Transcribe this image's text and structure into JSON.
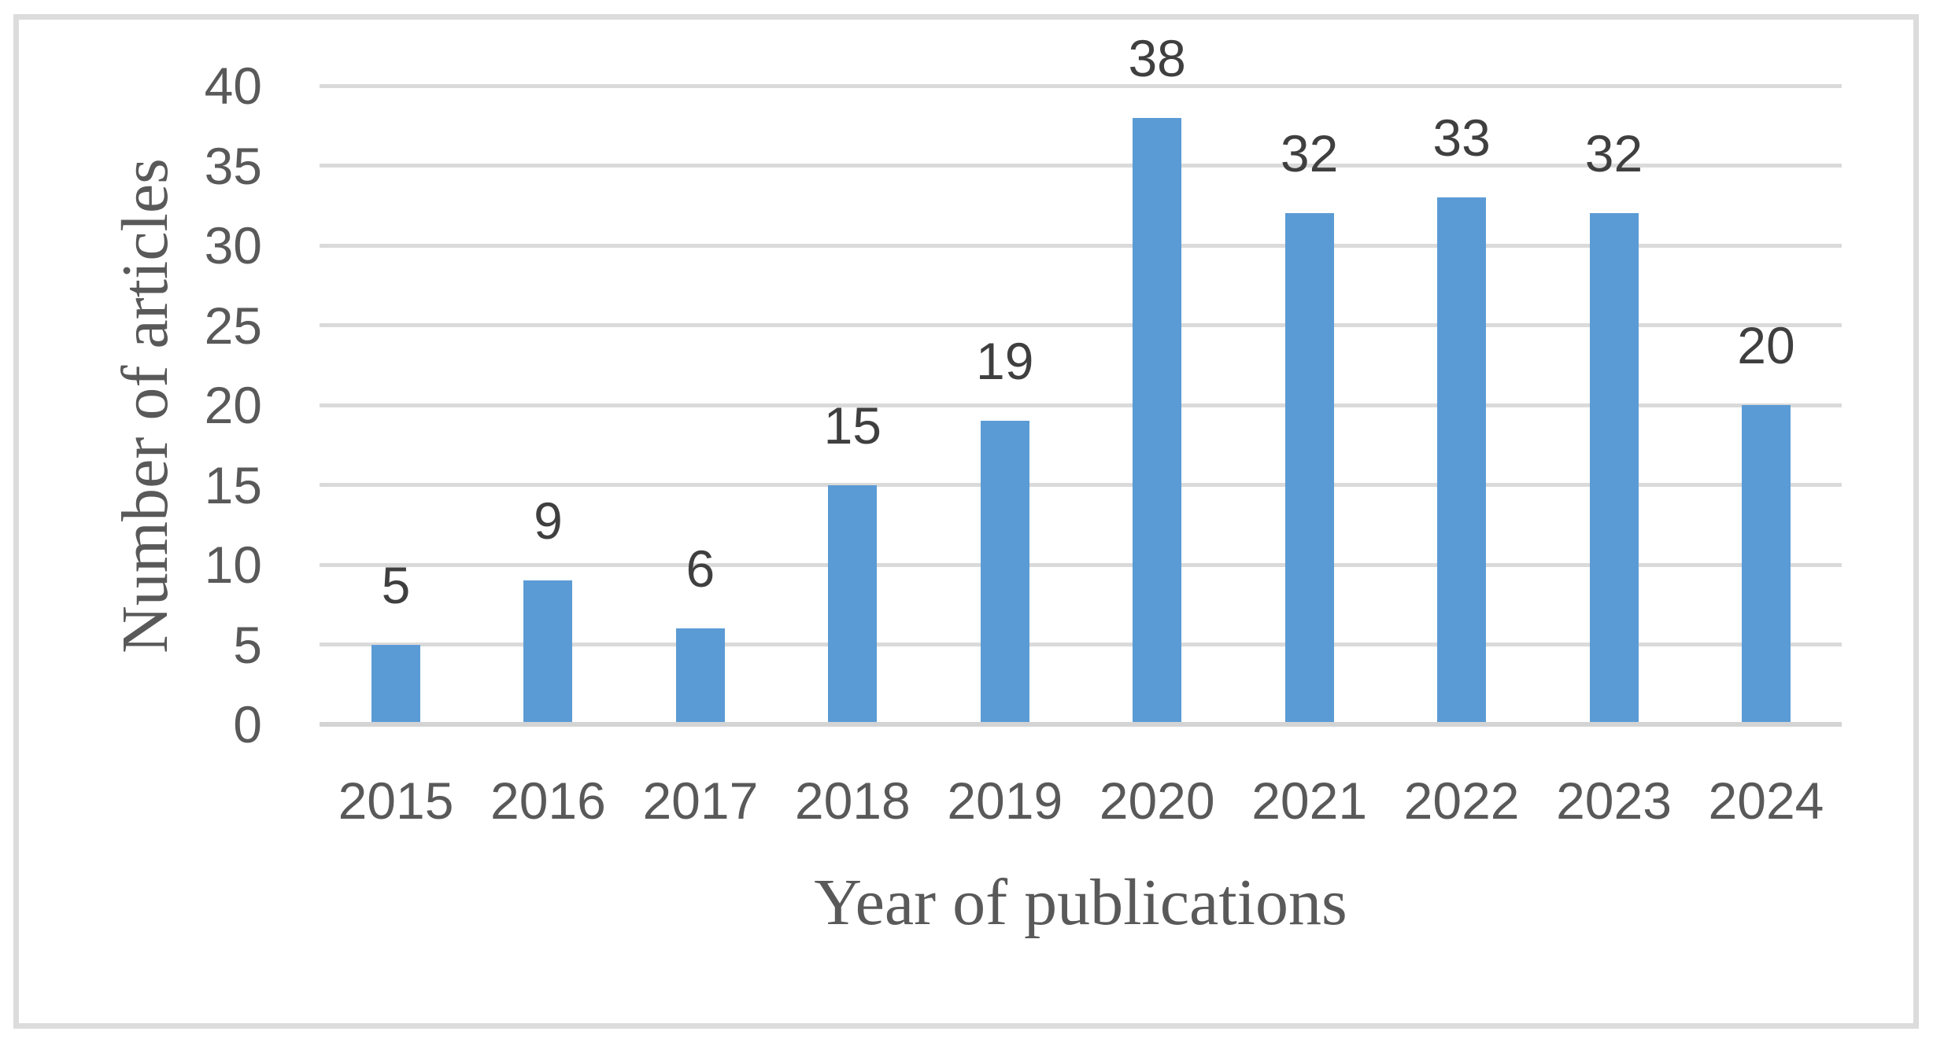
{
  "chart_data": {
    "type": "bar",
    "title": "",
    "xlabel": "Year of publications",
    "ylabel": "Number of articles",
    "categories": [
      "2015",
      "2016",
      "2017",
      "2018",
      "2019",
      "2020",
      "2021",
      "2022",
      "2023",
      "2024"
    ],
    "values": [
      5,
      9,
      6,
      15,
      19,
      38,
      32,
      33,
      32,
      20
    ],
    "data_labels_shown": true,
    "ylim": [
      0,
      40
    ],
    "ytick_step": 5,
    "yticks": [
      "0",
      "5",
      "10",
      "15",
      "20",
      "25",
      "30",
      "35",
      "40"
    ],
    "grid": true,
    "legend": "none",
    "colors": {
      "bar": "#5B9BD5",
      "gridline": "#DADADA",
      "axis_line": "#D4D4D4",
      "frame_border": "#DCDCDC",
      "tick_text": "#595959",
      "data_label_text": "#3F3F3F",
      "axis_title_text": "#595959",
      "background": "#FFFFFF"
    }
  }
}
